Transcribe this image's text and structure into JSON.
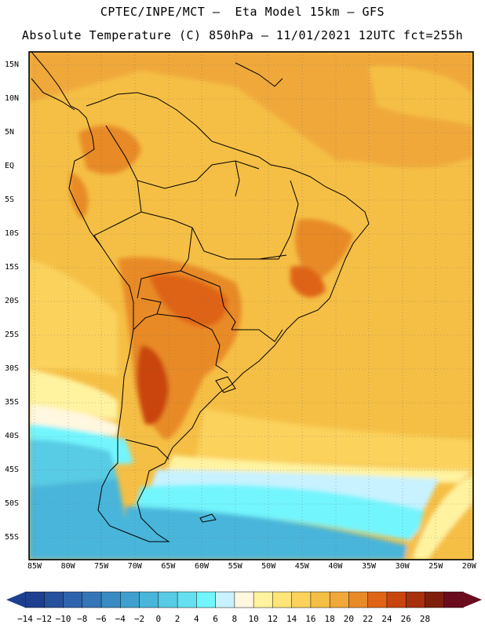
{
  "title_line1": "CPTEC/INPE/MCT –  Eta Model 15km – GFS",
  "title_line2": "Absolute Temperature (C) 850hPa – 11/01/2021 12UTC fct=255h",
  "lat_labels": [
    "15N",
    "10N",
    "5N",
    "EQ",
    "5S",
    "10S",
    "15S",
    "20S",
    "25S",
    "30S",
    "35S",
    "40S",
    "45S",
    "50S",
    "55S"
  ],
  "lon_labels": [
    "85W",
    "80W",
    "75W",
    "70W",
    "65W",
    "60W",
    "55W",
    "50W",
    "45W",
    "40W",
    "35W",
    "30W",
    "25W",
    "20W"
  ],
  "colorbar": {
    "labels": [
      "-14",
      "-12",
      "-10",
      "-8",
      "-6",
      "-4",
      "-2",
      "0",
      "2",
      "4",
      "6",
      "8",
      "10",
      "12",
      "14",
      "16",
      "18",
      "20",
      "22",
      "24",
      "26",
      "28"
    ],
    "colors": [
      "#1e3f8f",
      "#27509d",
      "#2f63ad",
      "#3576b8",
      "#3a8bc4",
      "#3fa0cf",
      "#48b5da",
      "#58cbe5",
      "#66e0f0",
      "#73f5fd",
      "#c8f2ff",
      "#fff7e0",
      "#fff3a0",
      "#ffe47a",
      "#fbd25c",
      "#f5bf45",
      "#f0a83a",
      "#e88a28",
      "#df6417",
      "#c94510",
      "#a8300e",
      "#7f1f0b",
      "#6a0b1e"
    ]
  }
}
